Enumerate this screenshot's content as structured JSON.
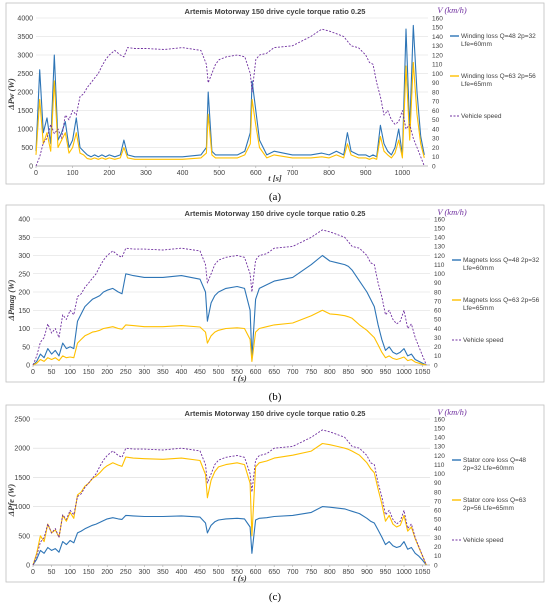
{
  "figure": {
    "panels": [
      {
        "caption": "(a)",
        "legend": [
          "Winding loss Q=48 2p=32 Lfe=60mm",
          "Winding loss Q=63 2p=56 Lfe=65mm",
          "Vehicle speed"
        ],
        "legend_lines": [
          [
            "Winding loss Q=48 2p=32",
            "Lfe=60mm"
          ],
          [
            "Winding loss Q=63 2p=56",
            "Lfe=65mm"
          ],
          [
            "Vehicle speed"
          ]
        ]
      },
      {
        "caption": "(b)",
        "legend": [
          "Magnets loss Q=48 2p=32 Lfe=60mm",
          "Magnets loss Q=63 2p=56 Lfe=65mm",
          "Vehicle speed"
        ],
        "legend_lines": [
          [
            "Magnets loss Q=48 2p=32",
            "Lfe=60mm"
          ],
          [
            "Magnets loss Q=63 2p=56",
            "Lfe=65mm"
          ],
          [
            "Vehicle speed"
          ]
        ]
      },
      {
        "caption": "(c)",
        "legend": [
          "Stator core loss Q=48 2p=32 Lfe=60mm",
          "Stator core loss Q=63 2p=56 Lfe=65mm",
          "Vehicle speed"
        ],
        "legend_lines": [
          [
            "Stator core loss Q=48",
            "2p=32 Lfe=60mm"
          ],
          [
            "Stator core loss Q=63",
            "2p=56 Lfe=65mm"
          ],
          [
            "Vehicle speed"
          ]
        ]
      }
    ]
  },
  "colors": {
    "series_a": "#2e75b6",
    "series_b": "#ffc000",
    "speed": "#7030a0"
  },
  "chart_data": [
    {
      "type": "line",
      "title": "Artemis Motorway 150 drive cycle torque ratio 0.25",
      "xlabel": "t [s]",
      "ylabel": "ΔPw (W)",
      "ylabel_right": "V (km/h)",
      "xlim": [
        0,
        1070
      ],
      "ylim": [
        0,
        4000
      ],
      "ylim_right": [
        0,
        160
      ],
      "xticks": [
        0,
        100,
        200,
        300,
        400,
        500,
        600,
        700,
        800,
        900,
        1000
      ],
      "yticks": [
        0,
        500,
        1000,
        1500,
        2000,
        2500,
        3000,
        3500,
        4000
      ],
      "yticks_right": [
        0,
        10,
        20,
        30,
        40,
        50,
        60,
        70,
        80,
        90,
        100,
        110,
        120,
        130,
        140,
        150,
        160
      ],
      "grid": "horizontal",
      "legend_position": "right",
      "x": [
        0,
        10,
        20,
        30,
        40,
        50,
        60,
        70,
        80,
        90,
        100,
        110,
        120,
        130,
        140,
        150,
        160,
        170,
        180,
        190,
        200,
        215,
        230,
        240,
        250,
        270,
        300,
        350,
        400,
        450,
        465,
        470,
        480,
        490,
        500,
        520,
        550,
        570,
        585,
        590,
        600,
        610,
        630,
        650,
        700,
        750,
        780,
        800,
        820,
        840,
        850,
        860,
        880,
        900,
        910,
        920,
        930,
        940,
        950,
        960,
        970,
        980,
        990,
        1000,
        1010,
        1020,
        1030,
        1040,
        1050,
        1060
      ],
      "series": [
        {
          "name": "Winding loss Q=48 2p=32 Lfe=60mm",
          "values": [
            400,
            2600,
            900,
            1300,
            600,
            3000,
            700,
            900,
            1200,
            500,
            700,
            1300,
            500,
            400,
            300,
            250,
            300,
            250,
            300,
            250,
            300,
            250,
            300,
            700,
            300,
            250,
            250,
            250,
            250,
            300,
            500,
            2000,
            400,
            300,
            300,
            300,
            300,
            400,
            900,
            2300,
            1500,
            700,
            300,
            400,
            300,
            300,
            350,
            300,
            400,
            300,
            900,
            400,
            300,
            300,
            250,
            300,
            250,
            1100,
            600,
            400,
            300,
            500,
            1000,
            300,
            3700,
            1000,
            3800,
            2000,
            800,
            300
          ]
        },
        {
          "name": "Winding loss Q=63 2p=56 Lfe=65mm",
          "values": [
            300,
            1800,
            600,
            900,
            400,
            2300,
            500,
            700,
            900,
            350,
            500,
            900,
            350,
            300,
            200,
            180,
            220,
            180,
            220,
            180,
            220,
            180,
            220,
            500,
            220,
            180,
            180,
            180,
            180,
            220,
            350,
            1400,
            300,
            220,
            220,
            220,
            220,
            300,
            600,
            1800,
            1100,
            500,
            220,
            300,
            220,
            220,
            250,
            220,
            300,
            220,
            600,
            300,
            220,
            220,
            180,
            220,
            180,
            800,
            400,
            300,
            220,
            350,
            700,
            220,
            2700,
            700,
            2800,
            1400,
            600,
            220
          ]
        },
        {
          "name": "Vehicle speed",
          "axis": "right",
          "values": [
            0,
            10,
            25,
            30,
            45,
            35,
            40,
            30,
            55,
            50,
            60,
            55,
            75,
            78,
            85,
            90,
            95,
            100,
            108,
            115,
            120,
            125,
            120,
            118,
            128,
            127,
            127,
            126,
            128,
            125,
            110,
            90,
            100,
            110,
            115,
            118,
            120,
            118,
            100,
            80,
            115,
            120,
            122,
            128,
            130,
            140,
            148,
            146,
            143,
            140,
            135,
            130,
            128,
            120,
            112,
            110,
            90,
            75,
            55,
            60,
            50,
            45,
            48,
            60,
            40,
            45,
            30,
            20,
            10,
            0
          ]
        }
      ]
    },
    {
      "type": "line",
      "title": "Artemis Motorway 150 drive cycle torque ratio 0.25",
      "xlabel": "t (s)",
      "ylabel": "ΔPmag (W)",
      "ylabel_right": "V (km/h)",
      "xlim": [
        0,
        1070
      ],
      "ylim": [
        0,
        400
      ],
      "ylim_right": [
        0,
        160
      ],
      "xticks": [
        0,
        50,
        100,
        150,
        200,
        250,
        300,
        350,
        400,
        450,
        500,
        550,
        600,
        650,
        700,
        750,
        800,
        850,
        900,
        950,
        1000,
        1050
      ],
      "yticks": [
        0,
        50,
        100,
        150,
        200,
        250,
        300,
        350,
        400
      ],
      "yticks_right": [
        0,
        10,
        20,
        30,
        40,
        50,
        60,
        70,
        80,
        90,
        100,
        110,
        120,
        130,
        140,
        150,
        160
      ],
      "grid": "horizontal",
      "legend_position": "right",
      "x": [
        0,
        10,
        20,
        30,
        40,
        50,
        60,
        70,
        80,
        90,
        100,
        110,
        120,
        130,
        140,
        150,
        160,
        170,
        180,
        190,
        200,
        215,
        230,
        240,
        250,
        270,
        300,
        350,
        400,
        450,
        465,
        470,
        480,
        490,
        500,
        520,
        550,
        570,
        585,
        590,
        600,
        610,
        630,
        650,
        700,
        750,
        780,
        800,
        820,
        840,
        850,
        860,
        880,
        900,
        910,
        920,
        930,
        940,
        950,
        960,
        970,
        980,
        990,
        1000,
        1010,
        1020,
        1030,
        1040,
        1050,
        1060
      ],
      "series": [
        {
          "name": "Magnets loss Q=48 2p=32 Lfe=60mm",
          "values": [
            0,
            10,
            30,
            20,
            45,
            30,
            40,
            25,
            60,
            45,
            50,
            45,
            120,
            140,
            160,
            170,
            180,
            185,
            190,
            200,
            205,
            210,
            200,
            195,
            250,
            245,
            240,
            240,
            245,
            235,
            200,
            120,
            170,
            190,
            200,
            210,
            215,
            210,
            150,
            20,
            180,
            210,
            220,
            230,
            240,
            275,
            300,
            285,
            280,
            275,
            270,
            260,
            230,
            200,
            180,
            160,
            110,
            70,
            40,
            50,
            35,
            30,
            35,
            45,
            25,
            30,
            15,
            10,
            5,
            0
          ]
        },
        {
          "name": "Magnets loss Q=63 2p=56 Lfe=65mm",
          "values": [
            0,
            5,
            15,
            10,
            20,
            15,
            20,
            12,
            25,
            20,
            22,
            20,
            60,
            70,
            80,
            85,
            90,
            92,
            95,
            100,
            102,
            105,
            100,
            98,
            110,
            108,
            105,
            105,
            108,
            104,
            90,
            60,
            80,
            90,
            95,
            100,
            102,
            100,
            70,
            10,
            90,
            100,
            105,
            110,
            115,
            135,
            150,
            140,
            138,
            135,
            132,
            128,
            110,
            95,
            85,
            75,
            55,
            35,
            20,
            25,
            18,
            15,
            18,
            22,
            12,
            15,
            8,
            5,
            2,
            0
          ]
        },
        {
          "name": "Vehicle speed",
          "axis": "right",
          "values": [
            0,
            10,
            25,
            30,
            45,
            35,
            40,
            30,
            55,
            50,
            60,
            55,
            75,
            78,
            85,
            90,
            95,
            100,
            108,
            115,
            120,
            125,
            120,
            118,
            128,
            127,
            127,
            126,
            128,
            125,
            110,
            90,
            100,
            110,
            115,
            118,
            120,
            118,
            100,
            80,
            115,
            120,
            122,
            128,
            130,
            140,
            148,
            146,
            143,
            140,
            135,
            130,
            128,
            120,
            112,
            110,
            90,
            75,
            55,
            60,
            50,
            45,
            48,
            60,
            40,
            45,
            30,
            20,
            10,
            0
          ]
        }
      ]
    },
    {
      "type": "line",
      "title": "Artemis Motorway 150 drive cycle torque ratio 0.25",
      "xlabel": "t (s)",
      "ylabel": "ΔPfe (W)",
      "ylabel_right": "V (km/h)",
      "xlim": [
        0,
        1070
      ],
      "ylim": [
        0,
        2500
      ],
      "ylim_right": [
        0,
        160
      ],
      "xticks": [
        0,
        50,
        100,
        150,
        200,
        250,
        300,
        350,
        400,
        450,
        500,
        550,
        600,
        650,
        700,
        750,
        800,
        850,
        900,
        950,
        1000,
        1050
      ],
      "yticks": [
        0,
        500,
        1000,
        1500,
        2000,
        2500
      ],
      "yticks_right": [
        0,
        10,
        20,
        30,
        40,
        50,
        60,
        70,
        80,
        90,
        100,
        110,
        120,
        130,
        140,
        150,
        160
      ],
      "grid": "horizontal",
      "legend_position": "right",
      "x": [
        0,
        10,
        20,
        30,
        40,
        50,
        60,
        70,
        80,
        90,
        100,
        110,
        120,
        130,
        140,
        150,
        160,
        170,
        180,
        190,
        200,
        215,
        230,
        240,
        250,
        270,
        300,
        350,
        400,
        450,
        465,
        470,
        480,
        490,
        500,
        520,
        550,
        570,
        585,
        590,
        600,
        610,
        630,
        650,
        700,
        750,
        780,
        800,
        820,
        840,
        850,
        860,
        880,
        900,
        910,
        920,
        930,
        940,
        950,
        960,
        970,
        980,
        990,
        1000,
        1010,
        1020,
        1030,
        1040,
        1050,
        1060
      ],
      "series": [
        {
          "name": "Stator core loss Q=48 2p=32 Lfe=60mm",
          "values": [
            0,
            100,
            250,
            200,
            300,
            250,
            280,
            220,
            400,
            350,
            420,
            380,
            550,
            580,
            620,
            650,
            680,
            700,
            730,
            760,
            790,
            810,
            790,
            780,
            850,
            840,
            830,
            830,
            840,
            820,
            720,
            550,
            680,
            740,
            770,
            790,
            800,
            790,
            650,
            200,
            770,
            800,
            810,
            830,
            850,
            900,
            1000,
            990,
            975,
            960,
            940,
            920,
            880,
            800,
            750,
            720,
            600,
            480,
            350,
            400,
            330,
            300,
            320,
            400,
            270,
            300,
            200,
            150,
            80,
            0
          ]
        },
        {
          "name": "Stator core loss Q=63 2p=56 Lfe=65mm",
          "values": [
            0,
            200,
            500,
            400,
            700,
            550,
            600,
            480,
            850,
            750,
            900,
            800,
            1200,
            1250,
            1350,
            1400,
            1480,
            1520,
            1580,
            1650,
            1700,
            1750,
            1710,
            1690,
            1850,
            1830,
            1820,
            1810,
            1830,
            1790,
            1550,
            1150,
            1450,
            1600,
            1680,
            1720,
            1750,
            1720,
            1400,
            500,
            1680,
            1750,
            1780,
            1830,
            1880,
            1950,
            2080,
            2060,
            2030,
            2000,
            1980,
            1950,
            1880,
            1750,
            1650,
            1580,
            1300,
            1050,
            750,
            850,
            700,
            650,
            680,
            850,
            580,
            650,
            450,
            300,
            150,
            0
          ]
        },
        {
          "name": "Vehicle speed",
          "axis": "right",
          "values": [
            0,
            10,
            25,
            30,
            45,
            35,
            40,
            30,
            55,
            50,
            60,
            55,
            75,
            78,
            85,
            90,
            95,
            100,
            108,
            115,
            120,
            125,
            120,
            118,
            128,
            127,
            127,
            126,
            128,
            125,
            110,
            90,
            100,
            110,
            115,
            118,
            120,
            118,
            100,
            80,
            115,
            120,
            122,
            128,
            130,
            140,
            148,
            146,
            143,
            140,
            135,
            130,
            128,
            120,
            112,
            110,
            90,
            75,
            55,
            60,
            50,
            45,
            48,
            60,
            40,
            45,
            30,
            20,
            10,
            0
          ]
        }
      ]
    }
  ]
}
